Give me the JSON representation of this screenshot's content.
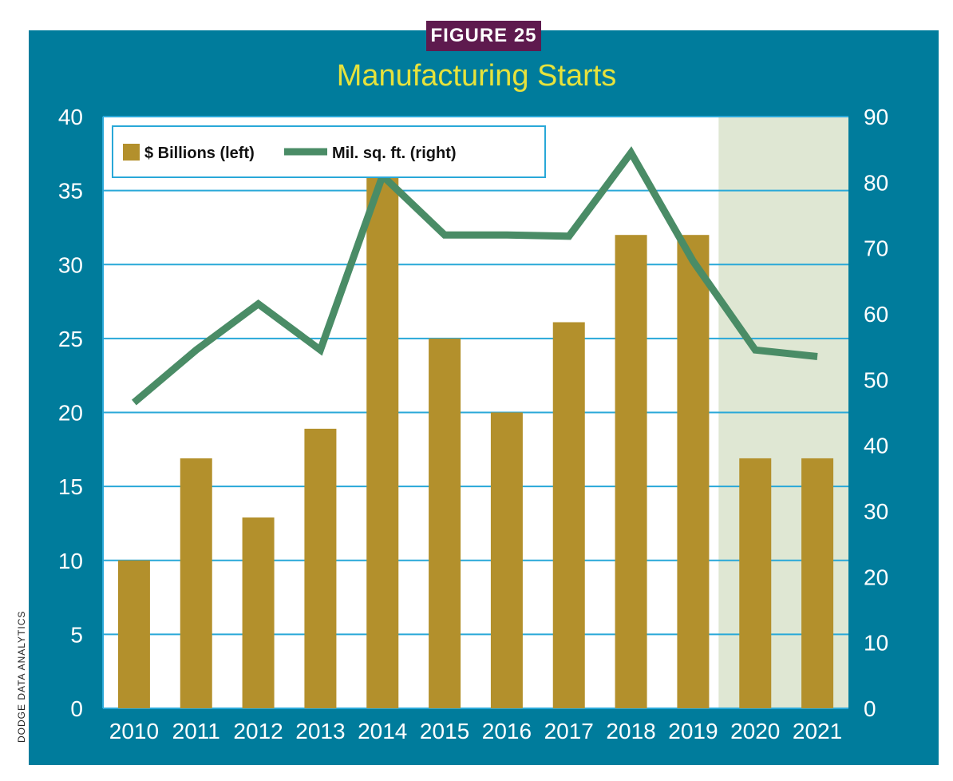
{
  "figure_label": "FIGURE 25",
  "source_credit": "DODGE DATA ANALYTICS",
  "colors": {
    "frame": "#007c9c",
    "badge": "#5e1a4e",
    "title": "#e6e23c",
    "bar": "#b3902c",
    "line": "#4a8c66",
    "forecast_shade": "#dfe7d3",
    "gridline": "#29a8d8"
  },
  "chart_data": {
    "type": "bar+line",
    "title": "Manufacturing Starts",
    "categories": [
      "2010",
      "2011",
      "2012",
      "2013",
      "2014",
      "2015",
      "2016",
      "2017",
      "2018",
      "2019",
      "2020",
      "2021"
    ],
    "series": [
      {
        "name": "$ Billions (left)",
        "type": "bar",
        "axis": "left",
        "values": [
          10,
          16.9,
          12.9,
          18.9,
          36,
          25,
          20,
          26.1,
          32,
          32,
          16.9,
          16.9
        ]
      },
      {
        "name": "Mil. sq. ft. (right)",
        "type": "line",
        "axis": "right",
        "values": [
          46.5,
          54.5,
          61.5,
          54.5,
          81,
          72,
          72,
          71.8,
          84.5,
          68,
          54.5,
          53.5
        ]
      }
    ],
    "y_left": {
      "ylim": [
        0,
        40
      ],
      "ticks": [
        "0",
        "5",
        "10",
        "15",
        "20",
        "25",
        "30",
        "35",
        "40"
      ]
    },
    "y_right": {
      "ylim": [
        0,
        90
      ],
      "ticks": [
        "0",
        "10",
        "20",
        "30",
        "40",
        "50",
        "60",
        "70",
        "80",
        "90"
      ]
    },
    "forecast_categories": [
      "2020",
      "2021"
    ],
    "grid": true,
    "legend": "top-left"
  }
}
